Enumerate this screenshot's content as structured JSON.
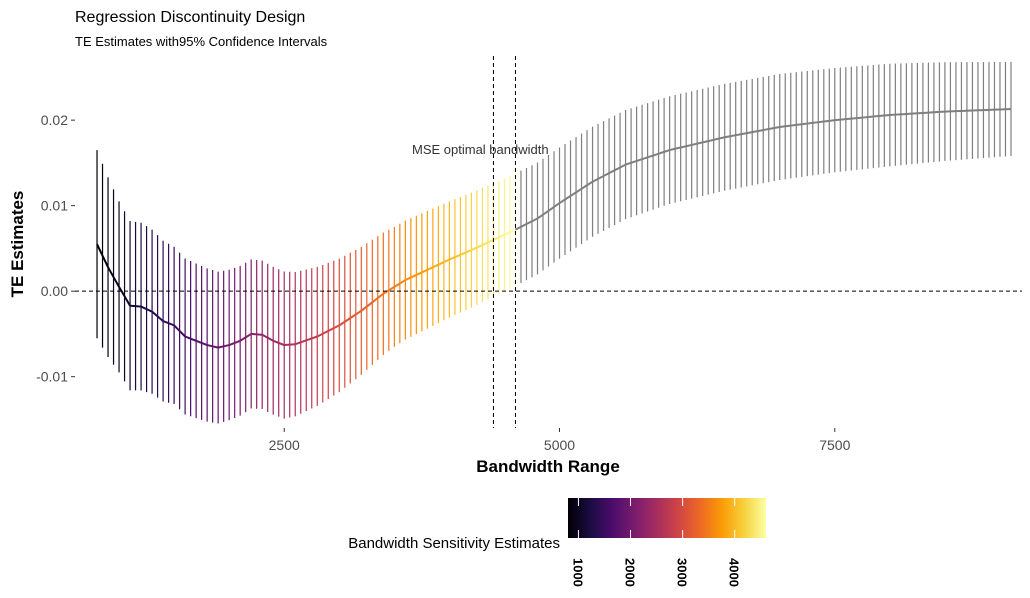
{
  "chart_data": {
    "type": "errorbar-line",
    "title": "Regression Discontinuity Design",
    "subtitle": "TE Estimates with95% Confidence Intervals",
    "xlabel": "Bandwidth Range",
    "ylabel": "TE Estimates",
    "xlim": [
      600,
      9200
    ],
    "ylim": [
      -0.016,
      0.0275
    ],
    "x_ticks": [
      2500,
      5000,
      7500
    ],
    "x_tick_labels": [
      "2500",
      "5000",
      "7500"
    ],
    "y_ticks": [
      -0.01,
      0.0,
      0.01,
      0.02
    ],
    "y_tick_labels": [
      "-0.01",
      "0.00",
      "0.01",
      "0.02"
    ],
    "grid": false,
    "x_step": 50,
    "x_start": 800,
    "x_end": 9100,
    "estimate_knots": [
      [
        800,
        0.0055
      ],
      [
        900,
        0.0028
      ],
      [
        1000,
        0.0005
      ],
      [
        1100,
        -0.0017
      ],
      [
        1200,
        -0.0018
      ],
      [
        1300,
        -0.0024
      ],
      [
        1400,
        -0.0035
      ],
      [
        1500,
        -0.004
      ],
      [
        1600,
        -0.0053
      ],
      [
        1700,
        -0.0058
      ],
      [
        1800,
        -0.0063
      ],
      [
        1900,
        -0.0066
      ],
      [
        2000,
        -0.0063
      ],
      [
        2100,
        -0.0058
      ],
      [
        2200,
        -0.005
      ],
      [
        2300,
        -0.0051
      ],
      [
        2400,
        -0.0058
      ],
      [
        2500,
        -0.0063
      ],
      [
        2600,
        -0.0062
      ],
      [
        2800,
        -0.0053
      ],
      [
        3000,
        -0.004
      ],
      [
        3200,
        -0.0023
      ],
      [
        3400,
        -0.0003
      ],
      [
        3600,
        0.0013
      ],
      [
        3800,
        0.0025
      ],
      [
        4000,
        0.0037
      ],
      [
        4200,
        0.0048
      ],
      [
        4400,
        0.006
      ],
      [
        4600,
        0.0072
      ],
      [
        4800,
        0.0085
      ],
      [
        5000,
        0.0103
      ],
      [
        5300,
        0.0128
      ],
      [
        5600,
        0.0148
      ],
      [
        6000,
        0.0165
      ],
      [
        6500,
        0.018
      ],
      [
        7000,
        0.0192
      ],
      [
        7500,
        0.02
      ],
      [
        8000,
        0.0206
      ],
      [
        8500,
        0.021
      ],
      [
        9100,
        0.0213
      ]
    ],
    "half_width_knots": [
      [
        800,
        0.011
      ],
      [
        1000,
        0.01
      ],
      [
        1200,
        0.0098
      ],
      [
        1500,
        0.0092
      ],
      [
        2000,
        0.0088
      ],
      [
        2500,
        0.0086
      ],
      [
        3000,
        0.0078
      ],
      [
        3500,
        0.007
      ],
      [
        4000,
        0.0068
      ],
      [
        4500,
        0.0066
      ],
      [
        5000,
        0.0065
      ],
      [
        6000,
        0.0063
      ],
      [
        7000,
        0.0062
      ],
      [
        8000,
        0.006
      ],
      [
        9100,
        0.0055
      ]
    ],
    "bar_color": {
      "colored_range": [
        800,
        4600
      ],
      "colored_stops": [
        "#000004",
        "#1b0c41",
        "#4a0c6b",
        "#781c6d",
        "#a52c60",
        "#cf4446",
        "#ed6925",
        "#fb9b06",
        "#f7d13d",
        "#fcffa4"
      ],
      "out_of_range_color": "#7f7f7f"
    },
    "reference_lines": {
      "horizontal": {
        "y": 0.0,
        "style": "dashed"
      },
      "vertical": [
        {
          "x": 4400,
          "style": "dashed"
        },
        {
          "x": 4600,
          "style": "dashed"
        }
      ]
    },
    "annotation": {
      "text": "MSE optimal bandwidth",
      "x": 3700,
      "y": 0.0165
    },
    "legend": {
      "title": "Bandwidth Sensitivity Estimates",
      "position": "bottom",
      "colors": [
        "#000004",
        "#1b0c41",
        "#4a0c6b",
        "#781c6d",
        "#a52c60",
        "#cf4446",
        "#ed6925",
        "#fb9b06",
        "#f7d13d",
        "#fcffa4"
      ],
      "range": [
        800,
        4600
      ],
      "ticks": [
        1000,
        2000,
        3000,
        4000
      ],
      "tick_labels": [
        "1000",
        "2000",
        "3000",
        "4000"
      ]
    }
  }
}
